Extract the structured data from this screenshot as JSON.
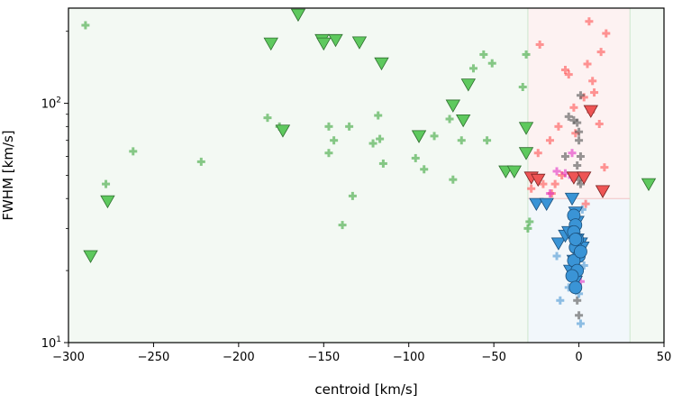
{
  "chart_data": {
    "type": "scatter",
    "title": "",
    "xlabel": "centroid [km/s]",
    "ylabel": "FWHM [km/s]",
    "xlim": [
      -300,
      50
    ],
    "ylim": [
      10,
      250
    ],
    "yscale": "log",
    "grid": false,
    "x_ticks": [
      {
        "value": -300,
        "label": "−300"
      },
      {
        "value": -250,
        "label": "−250"
      },
      {
        "value": -200,
        "label": "−200"
      },
      {
        "value": -150,
        "label": "−150"
      },
      {
        "value": -100,
        "label": "−100"
      },
      {
        "value": -50,
        "label": "−50"
      },
      {
        "value": 0,
        "label": "0"
      },
      {
        "value": 50,
        "label": "50"
      }
    ],
    "y_ticks": [
      {
        "value": 10,
        "base": "10",
        "exp": "1"
      },
      {
        "value": 100,
        "base": "10",
        "exp": "2"
      }
    ],
    "regions": [
      {
        "color": "#2ca02c",
        "opacity": 0.06,
        "x": [
          -300,
          50
        ],
        "y": [
          10,
          250
        ]
      },
      {
        "color": "#ffffff",
        "opacity": 1.0,
        "x": [
          -30,
          30
        ],
        "y": [
          10,
          250
        ]
      },
      {
        "color": "#d62728",
        "opacity": 0.06,
        "x": [
          -30,
          30
        ],
        "y": [
          40,
          250
        ]
      },
      {
        "color": "#1f77b4",
        "opacity": 0.06,
        "x": [
          -30,
          30
        ],
        "y": [
          10,
          40
        ]
      }
    ],
    "series": [
      {
        "marker": "plus",
        "color": "#2ca02c",
        "opacity": 0.55,
        "points": [
          [
            -290,
            212
          ],
          [
            -278,
            46
          ],
          [
            -262,
            63
          ],
          [
            -222,
            57
          ],
          [
            -183,
            87
          ],
          [
            -176,
            80
          ],
          [
            -147,
            80
          ],
          [
            -147,
            62
          ],
          [
            -144,
            70
          ],
          [
            -139,
            31
          ],
          [
            -135,
            80
          ],
          [
            -133,
            41
          ],
          [
            -121,
            68
          ],
          [
            -118,
            89
          ],
          [
            -117,
            71
          ],
          [
            -115,
            56
          ],
          [
            -96,
            59
          ],
          [
            -91,
            53
          ],
          [
            -85,
            73
          ],
          [
            -76,
            86
          ],
          [
            -74,
            48
          ],
          [
            -69,
            70
          ],
          [
            -62,
            140
          ],
          [
            -56,
            160
          ],
          [
            -54,
            70
          ],
          [
            -51,
            147
          ],
          [
            -33,
            117
          ],
          [
            -31,
            160
          ],
          [
            -30,
            30
          ],
          [
            -29,
            32
          ]
        ]
      },
      {
        "marker": "plus",
        "color": "#ff4444",
        "opacity": 0.55,
        "points": [
          [
            -23,
            176
          ],
          [
            -24,
            62
          ],
          [
            -21,
            46
          ],
          [
            -17,
            70
          ],
          [
            -12,
            80
          ],
          [
            -10,
            50
          ],
          [
            -8,
            138
          ],
          [
            -6,
            132
          ],
          [
            -3,
            96
          ],
          [
            -2,
            75
          ],
          [
            3,
            106
          ],
          [
            5,
            146
          ],
          [
            6,
            220
          ],
          [
            7,
            92
          ],
          [
            8,
            124
          ],
          [
            9,
            111
          ],
          [
            12,
            82
          ],
          [
            13,
            164
          ],
          [
            15,
            54
          ],
          [
            16,
            196
          ],
          [
            -28,
            44
          ],
          [
            -16,
            42
          ],
          [
            -14,
            46
          ],
          [
            4,
            38
          ]
        ]
      },
      {
        "marker": "plus",
        "color": "#e020c0",
        "opacity": 0.55,
        "points": [
          [
            -13,
            52
          ],
          [
            -8,
            51
          ],
          [
            -4,
            49
          ],
          [
            -2,
            30
          ],
          [
            -3,
            27
          ],
          [
            -1,
            26
          ],
          [
            0,
            20
          ],
          [
            1,
            18
          ],
          [
            -17,
            42
          ],
          [
            -4,
            62
          ]
        ]
      },
      {
        "marker": "plus",
        "color": "#555555",
        "opacity": 0.6,
        "points": [
          [
            -6,
            88
          ],
          [
            -3,
            85
          ],
          [
            -1,
            83
          ],
          [
            0,
            76
          ],
          [
            0,
            70
          ],
          [
            1,
            60
          ],
          [
            -1,
            55
          ],
          [
            0,
            48
          ],
          [
            1,
            46
          ],
          [
            -8,
            60
          ],
          [
            1,
            108
          ],
          [
            0,
            22
          ],
          [
            -1,
            15
          ],
          [
            0,
            13
          ],
          [
            -2,
            17
          ]
        ]
      },
      {
        "marker": "plus",
        "color": "#3b8fd0",
        "opacity": 0.55,
        "points": [
          [
            -13,
            23
          ],
          [
            -11,
            15
          ],
          [
            -6,
            17
          ],
          [
            0,
            16
          ],
          [
            1,
            12
          ],
          [
            -3,
            20
          ],
          [
            2,
            36
          ],
          [
            -4,
            33
          ],
          [
            3,
            21
          ],
          [
            -7,
            28
          ]
        ]
      },
      {
        "marker": "triangle",
        "color": "#5ec95e",
        "stroke": "#2e6e2e",
        "opacity": 1,
        "points": [
          [
            -287,
            23
          ],
          [
            -165,
            235
          ],
          [
            -181,
            178
          ],
          [
            -151,
            184
          ],
          [
            -150,
            178
          ],
          [
            -143,
            184
          ],
          [
            -129,
            180
          ],
          [
            -116,
            147
          ],
          [
            -174,
            77
          ],
          [
            -277,
            39
          ],
          [
            -94,
            73
          ],
          [
            -74,
            98
          ],
          [
            -68,
            85
          ],
          [
            -65,
            120
          ],
          [
            -43,
            52
          ],
          [
            -38,
            52
          ],
          [
            -31,
            79
          ],
          [
            -31,
            62
          ],
          [
            41,
            46
          ]
        ]
      },
      {
        "marker": "triangle",
        "color": "#ee5555",
        "stroke": "#7a2222",
        "opacity": 1,
        "points": [
          [
            -28,
            49
          ],
          [
            -24,
            48
          ],
          [
            -3,
            49
          ],
          [
            3,
            49
          ],
          [
            7,
            93
          ],
          [
            14,
            43
          ]
        ]
      },
      {
        "marker": "triangle",
        "color": "#3a94d6",
        "stroke": "#1c4f7a",
        "opacity": 1,
        "points": [
          [
            -25,
            38
          ],
          [
            -19,
            38
          ],
          [
            -4,
            40
          ],
          [
            -2,
            35
          ],
          [
            -1,
            32
          ],
          [
            -12,
            26
          ],
          [
            -8,
            28
          ],
          [
            -6,
            29
          ],
          [
            -1,
            27
          ],
          [
            1,
            26
          ],
          [
            2,
            25
          ],
          [
            -3,
            22
          ],
          [
            -5,
            20
          ],
          [
            -2,
            18
          ]
        ]
      },
      {
        "marker": "circle",
        "color": "#3a94d6",
        "stroke": "#1c4f7a",
        "opacity": 1,
        "points": [
          [
            -3,
            34
          ],
          [
            -2,
            31
          ],
          [
            -3,
            29
          ],
          [
            -1,
            27
          ],
          [
            -2,
            25
          ],
          [
            0,
            23
          ],
          [
            -3,
            22
          ],
          [
            -1,
            20
          ],
          [
            -4,
            19
          ],
          [
            -2,
            17
          ],
          [
            1,
            24
          ],
          [
            -2,
            27
          ]
        ]
      }
    ]
  }
}
